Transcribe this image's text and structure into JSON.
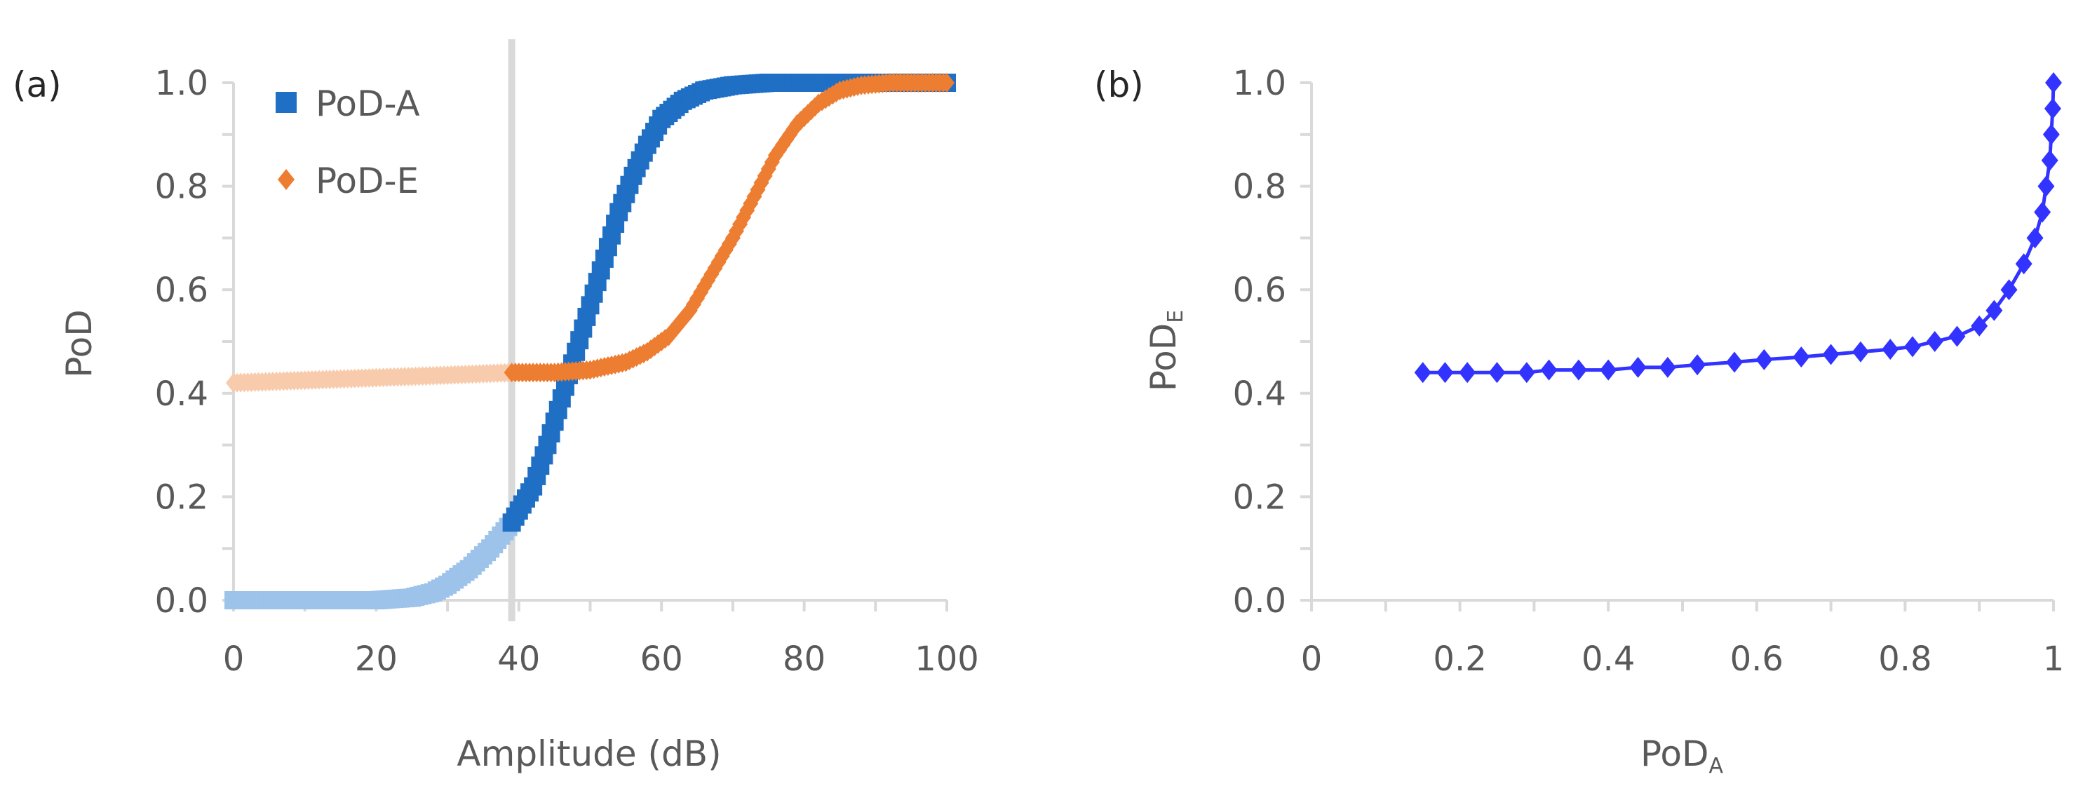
{
  "chart_data": [
    {
      "panel_label": "(a)",
      "type": "scatter",
      "xlabel": "Amplitude (dB)",
      "ylabel": "PoD",
      "xlim": [
        0,
        100
      ],
      "ylim": [
        0,
        1.0
      ],
      "x_ticks": [
        "0",
        "20",
        "40",
        "60",
        "80",
        "100"
      ],
      "y_ticks": [
        "0.0",
        "0.2",
        "0.4",
        "0.6",
        "0.8",
        "1.0"
      ],
      "grid": false,
      "legend_position": "top-left",
      "threshold_x": 39,
      "series": [
        {
          "name": "PoD-A",
          "marker": "square",
          "color": "#1f6fc5",
          "faded_color": "#9dc3ea",
          "points": [
            [
              0,
              0.0
            ],
            [
              10,
              0.0
            ],
            [
              20,
              0.0
            ],
            [
              25,
              0.005
            ],
            [
              28,
              0.015
            ],
            [
              30,
              0.03
            ],
            [
              33,
              0.06
            ],
            [
              36,
              0.1
            ],
            [
              39,
              0.15
            ],
            [
              42,
              0.22
            ],
            [
              44,
              0.3
            ],
            [
              46,
              0.39
            ],
            [
              48,
              0.48
            ],
            [
              50,
              0.57
            ],
            [
              52,
              0.66
            ],
            [
              54,
              0.75
            ],
            [
              56,
              0.82
            ],
            [
              58,
              0.88
            ],
            [
              60,
              0.93
            ],
            [
              63,
              0.965
            ],
            [
              66,
              0.985
            ],
            [
              70,
              0.995
            ],
            [
              75,
              1.0
            ],
            [
              80,
              1.0
            ],
            [
              90,
              1.0
            ],
            [
              100,
              1.0
            ]
          ]
        },
        {
          "name": "PoD-E",
          "marker": "diamond",
          "color": "#ed7d31",
          "faded_color": "#f8cbad",
          "points": [
            [
              0,
              0.42
            ],
            [
              10,
              0.425
            ],
            [
              20,
              0.43
            ],
            [
              30,
              0.435
            ],
            [
              39,
              0.44
            ],
            [
              45,
              0.44
            ],
            [
              50,
              0.445
            ],
            [
              55,
              0.46
            ],
            [
              58,
              0.48
            ],
            [
              61,
              0.51
            ],
            [
              64,
              0.56
            ],
            [
              67,
              0.63
            ],
            [
              70,
              0.7
            ],
            [
              73,
              0.78
            ],
            [
              76,
              0.86
            ],
            [
              79,
              0.92
            ],
            [
              82,
              0.96
            ],
            [
              85,
              0.985
            ],
            [
              88,
              0.995
            ],
            [
              92,
              1.0
            ],
            [
              96,
              1.0
            ],
            [
              100,
              1.0
            ]
          ]
        }
      ]
    },
    {
      "panel_label": "(b)",
      "type": "line",
      "xlabel": "PoDA",
      "ylabel": "PoDE",
      "xlim": [
        0,
        1
      ],
      "ylim": [
        0,
        1.0
      ],
      "x_ticks": [
        "0",
        "0.2",
        "0.4",
        "0.6",
        "0.8",
        "1"
      ],
      "y_ticks": [
        "0.0",
        "0.2",
        "0.4",
        "0.6",
        "0.8",
        "1.0"
      ],
      "grid": false,
      "series": [
        {
          "marker": "diamond",
          "color": "#3333ff",
          "points": [
            [
              0.15,
              0.44
            ],
            [
              0.18,
              0.44
            ],
            [
              0.21,
              0.44
            ],
            [
              0.25,
              0.44
            ],
            [
              0.29,
              0.44
            ],
            [
              0.32,
              0.445
            ],
            [
              0.36,
              0.445
            ],
            [
              0.4,
              0.445
            ],
            [
              0.44,
              0.45
            ],
            [
              0.48,
              0.45
            ],
            [
              0.52,
              0.455
            ],
            [
              0.57,
              0.46
            ],
            [
              0.61,
              0.465
            ],
            [
              0.66,
              0.47
            ],
            [
              0.7,
              0.475
            ],
            [
              0.74,
              0.48
            ],
            [
              0.78,
              0.485
            ],
            [
              0.81,
              0.49
            ],
            [
              0.84,
              0.5
            ],
            [
              0.87,
              0.51
            ],
            [
              0.9,
              0.53
            ],
            [
              0.92,
              0.56
            ],
            [
              0.94,
              0.6
            ],
            [
              0.96,
              0.65
            ],
            [
              0.975,
              0.7
            ],
            [
              0.985,
              0.75
            ],
            [
              0.99,
              0.8
            ],
            [
              0.995,
              0.85
            ],
            [
              0.997,
              0.9
            ],
            [
              0.999,
              0.95
            ],
            [
              1.0,
              1.0
            ]
          ]
        }
      ]
    }
  ]
}
